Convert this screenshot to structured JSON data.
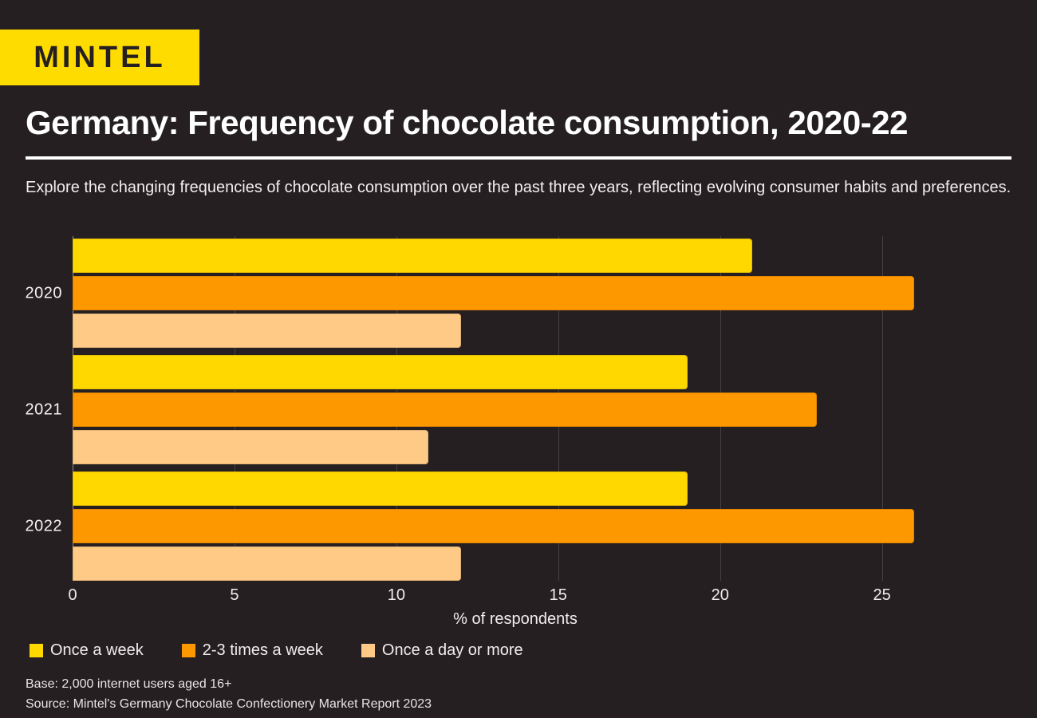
{
  "brand": {
    "logo_text": "MINTEL",
    "logo_bg": "#FFDC00",
    "logo_fg": "#251F21"
  },
  "header": {
    "title": "Germany: Frequency of chocolate consumption, 2020-22",
    "subtitle": "Explore the changing frequencies of chocolate consumption over the past three years, reflecting evolving consumer habits and preferences."
  },
  "chart_data": {
    "type": "bar",
    "orientation": "horizontal",
    "title": "Germany: Frequency of chocolate consumption, 2020-22",
    "categories": [
      "2020",
      "2021",
      "2022"
    ],
    "series": [
      {
        "name": "Once a week",
        "color": "#FFD800",
        "values": [
          21,
          19,
          19
        ]
      },
      {
        "name": "2-3 times a week",
        "color": "#FD9800",
        "values": [
          26,
          23,
          26
        ]
      },
      {
        "name": "Once a day or more",
        "color": "#FFCA85",
        "values": [
          12,
          11,
          12
        ]
      }
    ],
    "xlabel": "% of respondents",
    "x_ticks": [
      0,
      5,
      10,
      15,
      20,
      25
    ],
    "xlim": [
      0,
      29
    ],
    "grid": "vertical-only",
    "legend_position": "bottom-left"
  },
  "footer": {
    "base": "Base: 2,000 internet users aged 16+",
    "source": "Source: Mintel's Germany Chocolate Confectionery Market Report 2023"
  },
  "colors": {
    "background": "#251F21",
    "title_text": "#FFFFFF",
    "body_text": "#F2EDEE",
    "gridline": "#474143",
    "axis_line": "#8F898B"
  }
}
